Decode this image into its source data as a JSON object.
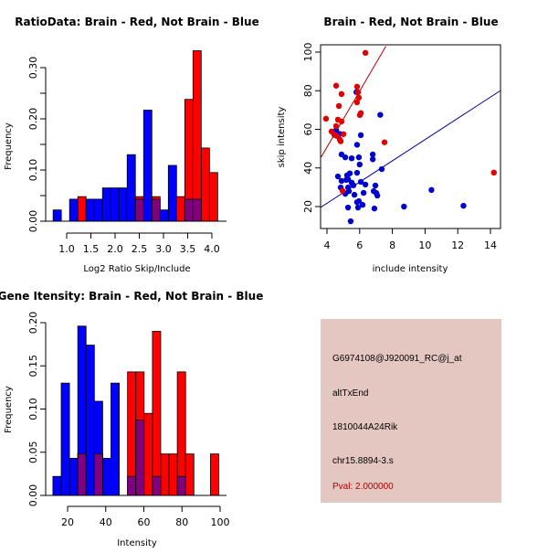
{
  "colors": {
    "red": "#ff0000",
    "blue": "#0000ff",
    "overlap": "#800080",
    "red_point": "#e00000",
    "blue_point": "#0000d0",
    "red_line": "#c00000",
    "blue_line": "#0000a0",
    "info_bg": "#e5c7c1",
    "pval_color": "#b00000"
  },
  "chart_data": [
    {
      "type": "bar",
      "name": "ratio-histogram",
      "title": "RatioData: Brain - Red, Not Brain - Blue",
      "xlabel": "Log2 Ratio Skip/Include",
      "ylabel": "Frequency",
      "xlim": [
        0.72,
        4.2
      ],
      "ylim": [
        0,
        0.33
      ],
      "xticks": [
        "1.0",
        "1.5",
        "2.0",
        "2.5",
        "3.0",
        "3.5",
        "4.0"
      ],
      "xtick_values": [
        1.0,
        1.5,
        2.0,
        2.5,
        3.0,
        3.5,
        4.0
      ],
      "yticks": [
        "0.00",
        "0.10",
        "0.20",
        "0.30"
      ],
      "ytick_values": [
        0.0,
        0.1,
        0.2,
        0.3
      ],
      "yminor_values": [
        0.05,
        0.15,
        0.25
      ],
      "bin_start": 0.72,
      "bin_width": 0.17,
      "series": [
        {
          "name": "Not Brain",
          "color": "blue",
          "values": [
            0.022,
            0,
            0.043,
            0,
            0.043,
            0.043,
            0.065,
            0.065,
            0.065,
            0.13,
            0.043,
            0.217,
            0.043,
            0.022,
            0.109,
            0,
            0.043,
            0.043,
            0,
            0
          ]
        },
        {
          "name": "Brain",
          "color": "red",
          "values": [
            0,
            0,
            0,
            0.048,
            0,
            0,
            0,
            0,
            0,
            0,
            0.048,
            0,
            0.048,
            0,
            0,
            0.048,
            0.238,
            0.333,
            0.143,
            0.095
          ]
        }
      ]
    },
    {
      "type": "scatter",
      "name": "intensity-scatter",
      "title": "Brain - Red, Not Brain - Blue",
      "xlabel": "include intensity",
      "ylabel": "skip intensity",
      "xlim": [
        3.6,
        14.6
      ],
      "ylim": [
        9,
        103
      ],
      "xticks": [
        "4",
        "6",
        "8",
        "10",
        "12",
        "14"
      ],
      "xtick_values": [
        4,
        6,
        8,
        10,
        12,
        14
      ],
      "yticks": [
        "20",
        "40",
        "60",
        "80",
        "100"
      ],
      "ytick_values": [
        20,
        40,
        60,
        80,
        100
      ],
      "series": [
        {
          "name": "Brain",
          "color": "red_point",
          "points": [
            [
              6.35,
              99.6
            ],
            [
              4.56,
              82.6
            ],
            [
              5.84,
              82.1
            ],
            [
              4.89,
              78.3
            ],
            [
              5.9,
              79.2
            ],
            [
              5.95,
              76.4
            ],
            [
              4.73,
              72.1
            ],
            [
              5.84,
              74.0
            ],
            [
              6.01,
              67.4
            ],
            [
              3.94,
              65.5
            ],
            [
              4.67,
              65.0
            ],
            [
              4.89,
              64.1
            ],
            [
              4.56,
              61.7
            ],
            [
              4.28,
              58.9
            ],
            [
              4.45,
              57.1
            ],
            [
              5.01,
              57.5
            ],
            [
              4.78,
              54.7
            ],
            [
              4.84,
              53.8
            ],
            [
              7.52,
              53.3
            ],
            [
              4.61,
              56.6
            ],
            [
              14.21,
              37.6
            ],
            [
              4.95,
              28.2
            ],
            [
              6.07,
              68.4
            ]
          ]
        },
        {
          "name": "Not Brain",
          "color": "blue_point",
          "points": [
            [
              5.8,
              79.3
            ],
            [
              7.26,
              67.5
            ],
            [
              4.56,
              59.5
            ],
            [
              4.78,
              57.6
            ],
            [
              6.07,
              57.0
            ],
            [
              5.84,
              52.0
            ],
            [
              4.89,
              47.0
            ],
            [
              5.12,
              45.5
            ],
            [
              5.51,
              45.0
            ],
            [
              5.95,
              45.5
            ],
            [
              6.8,
              47.0
            ],
            [
              6.8,
              44.5
            ],
            [
              6.0,
              41.8
            ],
            [
              7.35,
              39.4
            ],
            [
              4.67,
              35.6
            ],
            [
              5.4,
              37.2
            ],
            [
              5.23,
              36.2
            ],
            [
              5.84,
              37.5
            ],
            [
              5.29,
              34.2
            ],
            [
              4.89,
              33.3
            ],
            [
              5.18,
              33.8
            ],
            [
              5.51,
              32.4
            ],
            [
              6.07,
              32.8
            ],
            [
              6.35,
              31.4
            ],
            [
              5.62,
              31.0
            ],
            [
              6.96,
              30.9
            ],
            [
              5.29,
              29.9
            ],
            [
              4.84,
              29.9
            ],
            [
              5.34,
              28.0
            ],
            [
              6.24,
              27.1
            ],
            [
              5.12,
              26.6
            ],
            [
              6.86,
              28.0
            ],
            [
              7.02,
              27.0
            ],
            [
              7.08,
              25.7
            ],
            [
              5.68,
              26.1
            ],
            [
              5.84,
              22.3
            ],
            [
              5.95,
              22.8
            ],
            [
              6.18,
              20.9
            ],
            [
              5.29,
              19.5
            ],
            [
              5.9,
              19.5
            ],
            [
              6.9,
              19.0
            ],
            [
              8.71,
              20.0
            ],
            [
              10.39,
              28.6
            ],
            [
              12.35,
              20.4
            ],
            [
              5.45,
              12.4
            ]
          ]
        }
      ],
      "fit_lines": [
        {
          "name": "Brain",
          "color": "red_line",
          "x": [
            3.6,
            7.6
          ],
          "y": [
            45.0,
            103.0
          ]
        },
        {
          "name": "Not Brain",
          "color": "blue_line",
          "x": [
            3.6,
            14.6
          ],
          "y": [
            19.5,
            80.0
          ]
        }
      ]
    },
    {
      "type": "bar",
      "name": "intensity-histogram",
      "title": "Gene Itensity: Brain - Red, Not Brain - Blue",
      "xlabel": "Intensity",
      "ylabel": "Frequency",
      "xlim": [
        12.3,
        102
      ],
      "ylim": [
        0,
        0.2
      ],
      "xticks": [
        "20",
        "40",
        "60",
        "80",
        "100"
      ],
      "xtick_values": [
        20,
        40,
        60,
        80,
        100
      ],
      "yticks": [
        "0.00",
        "0.05",
        "0.10",
        "0.15",
        "0.20"
      ],
      "ytick_values": [
        0.0,
        0.05,
        0.1,
        0.15,
        0.2
      ],
      "bin_start": 12.3,
      "bin_width": 4.35,
      "series": [
        {
          "name": "Not Brain",
          "color": "blue",
          "values": [
            0.022,
            0.13,
            0.043,
            0.196,
            0.174,
            0.109,
            0.043,
            0.13,
            0,
            0,
            0,
            0,
            0,
            0,
            0,
            0,
            0,
            0,
            0,
            0
          ]
        },
        {
          "name": "Brain",
          "color": "red",
          "values": [
            0,
            0,
            0,
            0.048,
            0,
            0.048,
            0,
            0,
            0,
            0.143,
            0.143,
            0.095,
            0.19,
            0.048,
            0.048,
            0.143,
            0.048,
            0,
            0,
            0.048
          ]
        },
        {
          "name": "Overlap-Brain-in-blue-range",
          "color": "overlap",
          "values": [
            0,
            0,
            0,
            0.048,
            0,
            0.048,
            0,
            0,
            0,
            0.022,
            0.087,
            0,
            0.022,
            0,
            0,
            0.022,
            0,
            0,
            0,
            0
          ]
        }
      ]
    }
  ],
  "info_panel": {
    "probe_id": "G6974108@J920091_RC@j_at",
    "event_type": "altTxEnd",
    "gene": "1810044A24Rik",
    "location": "chr15.8894-3.s",
    "pval": "Pval: 2.000000"
  }
}
